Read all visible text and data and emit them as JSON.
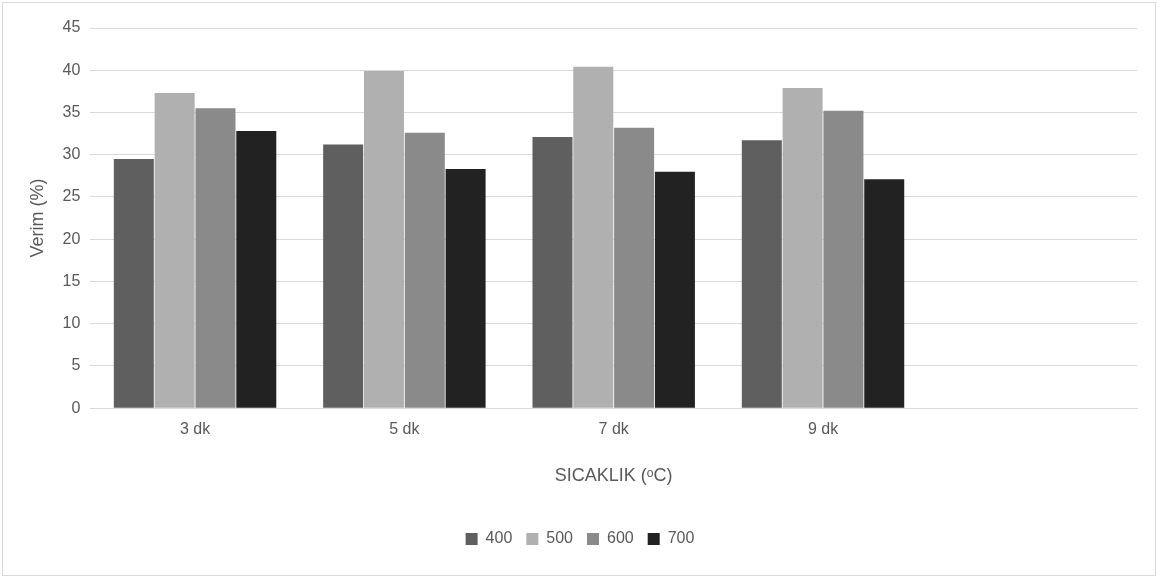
{
  "chart_data": {
    "type": "bar",
    "xlabel": "SICAKLIK (ᵒC)",
    "ylabel": "Verim (%)",
    "categories": [
      "3 dk",
      "5 dk",
      "7 dk",
      "9 dk",
      null
    ],
    "series": [
      {
        "name": "400",
        "color": "#5f5f5f",
        "values": [
          29.5,
          31.2,
          32.1,
          31.7,
          null
        ]
      },
      {
        "name": "500",
        "color": "#b0b0b0",
        "values": [
          37.3,
          39.9,
          40.4,
          37.9,
          null
        ]
      },
      {
        "name": "600",
        "color": "#8a8a8a",
        "values": [
          35.5,
          32.6,
          33.2,
          35.2,
          null
        ]
      },
      {
        "name": "700",
        "color": "#222222",
        "values": [
          32.8,
          28.3,
          28.0,
          27.1,
          null
        ]
      }
    ],
    "ylim": [
      0,
      45
    ],
    "yticks": [
      0,
      5,
      10,
      15,
      20,
      25,
      30,
      35,
      40,
      45
    ],
    "grid": "y",
    "legend": "bottom"
  }
}
